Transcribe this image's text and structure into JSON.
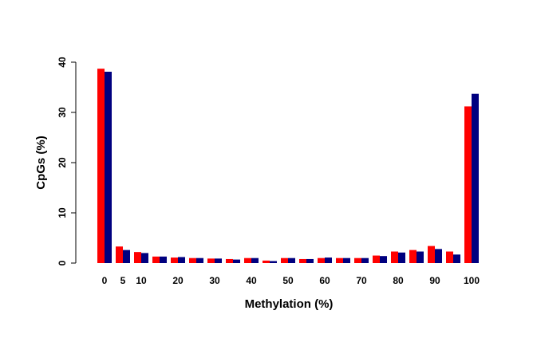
{
  "chart_data": {
    "type": "bar",
    "xlabel": "Methylation (%)",
    "ylabel": "CpGs (%)",
    "ylim": [
      0,
      40
    ],
    "yticks": [
      0,
      10,
      20,
      30,
      40
    ],
    "categories": [
      "0",
      "5",
      "10",
      "15",
      "20",
      "25",
      "30",
      "35",
      "40",
      "45",
      "50",
      "55",
      "60",
      "65",
      "70",
      "75",
      "80",
      "85",
      "90",
      "95",
      "100"
    ],
    "xtick_labels": [
      "0",
      "5",
      "10",
      "20",
      "30",
      "40",
      "50",
      "60",
      "70",
      "80",
      "90",
      "100"
    ],
    "series": [
      {
        "color": "#ff0000",
        "values": [
          38.7,
          3.3,
          2.2,
          1.3,
          1.1,
          1.0,
          0.9,
          0.8,
          1.0,
          0.5,
          1.0,
          0.8,
          1.0,
          1.0,
          1.0,
          1.5,
          2.3,
          2.6,
          3.4,
          2.3,
          31.2
        ]
      },
      {
        "color": "#00007f",
        "values": [
          38.1,
          2.6,
          2.0,
          1.3,
          1.2,
          1.0,
          0.9,
          0.7,
          1.0,
          0.4,
          1.0,
          0.8,
          1.1,
          1.0,
          1.0,
          1.4,
          2.1,
          2.3,
          2.8,
          1.7,
          33.7
        ]
      }
    ],
    "legend": "none",
    "grid": false
  }
}
